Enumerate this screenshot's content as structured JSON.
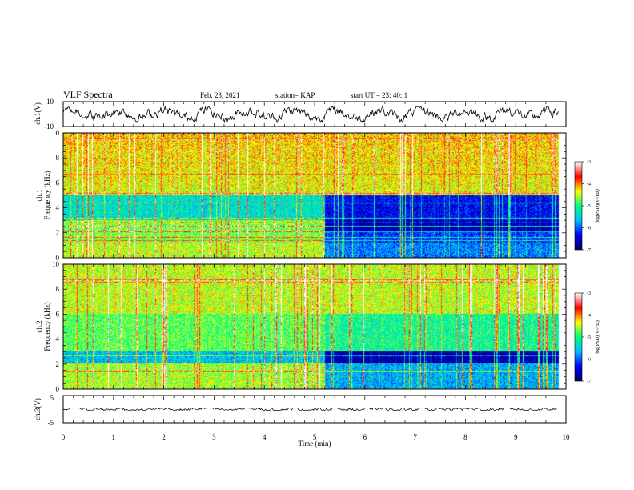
{
  "header": {
    "title": "VLF Spectra",
    "date": "Feb. 23, 2021",
    "station": "station= KAP",
    "start_ut": "start  UT  =   23: 40: 1"
  },
  "chart_data": [
    {
      "type": "line",
      "panel": "ch1-waveform",
      "ylabel": "ch.1(V)",
      "yticks": [
        "10",
        "-10"
      ],
      "ylim": [
        -10,
        10
      ],
      "xlim": [
        0,
        10
      ],
      "x_unit": "min",
      "series": [
        {
          "x_range": [
            0,
            9.85
          ],
          "approx_range": [
            -6,
            6
          ]
        }
      ],
      "color": "#000000"
    },
    {
      "type": "heatmap",
      "panel": "ch1-spectrogram",
      "ylabel": "ch.1\nFrequency (kHz)",
      "yticks": [
        "0",
        "2",
        "4",
        "6",
        "8",
        "10"
      ],
      "ylim": [
        0,
        10
      ],
      "xlim": [
        0,
        10
      ],
      "x_data_end": 9.85,
      "regime_change_time": 5.2,
      "colorbar": {
        "label": "log(PSD)(V²/Hz)",
        "ticks": [
          "-3",
          "-4",
          "-5",
          "-6",
          "-7"
        ],
        "range": [
          -7,
          -3
        ],
        "colors": [
          "#000066",
          "#0000ff",
          "#00c0ff",
          "#00ff80",
          "#ffff00",
          "#ff0000",
          "#ffffff"
        ]
      }
    },
    {
      "type": "heatmap",
      "panel": "ch2-spectrogram",
      "ylabel": "ch.2\nFrequency (kHz)",
      "yticks": [
        "0",
        "2",
        "4",
        "6",
        "8",
        "10"
      ],
      "ylim": [
        0,
        10
      ],
      "xlim": [
        0,
        10
      ],
      "x_data_end": 9.85,
      "regime_change_time": 5.2,
      "colorbar": {
        "label": "log(PSD)(V²/Hz)",
        "ticks": [
          "-3",
          "-4",
          "-5",
          "-6",
          "-7"
        ],
        "range": [
          -7,
          -3
        ],
        "colors": [
          "#000066",
          "#0000ff",
          "#00c0ff",
          "#00ff80",
          "#ffff00",
          "#ff0000",
          "#ffffff"
        ]
      }
    },
    {
      "type": "line",
      "panel": "ch3-waveform",
      "ylabel": "ch.3(V)",
      "yticks": [
        "5",
        "-5"
      ],
      "ylim": [
        -5,
        5
      ],
      "xlim": [
        0,
        10
      ],
      "series": [
        {
          "x_range": [
            0,
            9.85
          ],
          "approx_range": [
            -0.4,
            0.4
          ]
        }
      ],
      "color": "#000000"
    }
  ],
  "xaxis": {
    "label": "Time (min)",
    "ticks": [
      "0",
      "1",
      "2",
      "3",
      "4",
      "5",
      "6",
      "7",
      "8",
      "9",
      "10"
    ]
  }
}
